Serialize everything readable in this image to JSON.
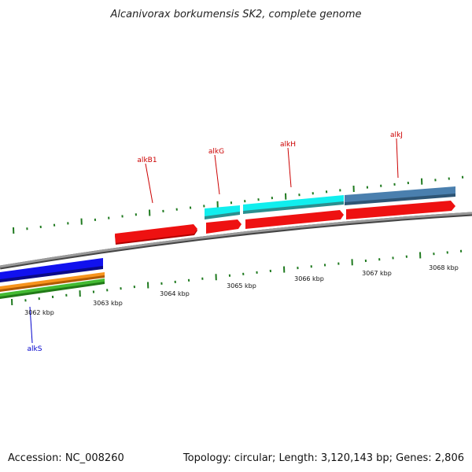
{
  "title": "Alcanivorax borkumensis SK2, complete genome",
  "footer": {
    "accession": "Accession: NC_008260",
    "summary": "Topology: circular; Length: 3,120,143 bp; Genes: 2,806"
  },
  "colors": {
    "backbone": "#8a8a8a",
    "tick": "#1f7a1f",
    "label_red": "#cc0000",
    "label_blue": "#0000cc",
    "cds_red": "#ee1111",
    "cyan": "#11eeee",
    "steelblue": "#4a7fae",
    "blue": "#1111ee",
    "orange": "#f7941d",
    "green": "#44bb33"
  },
  "kbp_labels": [
    "3062 kbp",
    "3063 kbp",
    "3064 kbp",
    "3065 kbp",
    "3066 kbp",
    "3067 kbp",
    "3068 kbp"
  ],
  "gene_labels": [
    {
      "id": "alkB1",
      "text": "alkB1",
      "color": "red"
    },
    {
      "id": "alkG",
      "text": "alkG",
      "color": "red"
    },
    {
      "id": "alkH",
      "text": "alkH",
      "color": "red"
    },
    {
      "id": "alkJ",
      "text": "alkJ",
      "color": "red"
    },
    {
      "id": "alkS",
      "text": "alkS",
      "color": "blue"
    }
  ]
}
